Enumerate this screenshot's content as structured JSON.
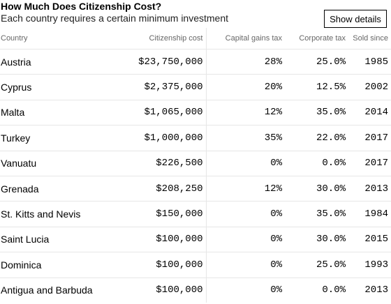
{
  "header": {
    "title": "How Much Does Citizenship Cost?",
    "subtitle": "Each country requires a certain minimum investment",
    "button_label": "Show details"
  },
  "table": {
    "columns": [
      "Country",
      "Citizenship cost",
      "Capital gains tax",
      "Corporate tax",
      "Sold since"
    ],
    "rows": [
      [
        "Austria",
        "$23,750,000",
        "28%",
        "25.0%",
        "1985"
      ],
      [
        "Cyprus",
        "$2,375,000",
        "20%",
        "12.5%",
        "2002"
      ],
      [
        "Malta",
        "$1,065,000",
        "12%",
        "35.0%",
        "2014"
      ],
      [
        "Turkey",
        "$1,000,000",
        "35%",
        "22.0%",
        "2017"
      ],
      [
        "Vanuatu",
        "$226,500",
        "0%",
        "0.0%",
        "2017"
      ],
      [
        "Grenada",
        "$208,250",
        "12%",
        "30.0%",
        "2013"
      ],
      [
        "St. Kitts and Nevis",
        "$150,000",
        "0%",
        "35.0%",
        "1984"
      ],
      [
        "Saint Lucia",
        "$100,000",
        "0%",
        "30.0%",
        "2015"
      ],
      [
        "Dominica",
        "$100,000",
        "0%",
        "25.0%",
        "1993"
      ],
      [
        "Antigua and Barbuda",
        "$100,000",
        "0%",
        "0.0%",
        "2013"
      ]
    ]
  }
}
